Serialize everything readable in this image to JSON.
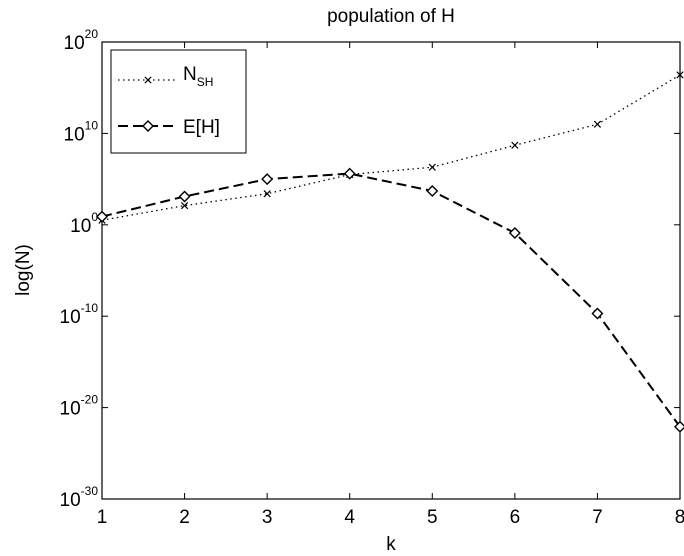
{
  "chart_data": {
    "type": "line",
    "title": "population of H",
    "xlabel": "k",
    "ylabel": "log(N)",
    "yscale": "log",
    "xlim": [
      1,
      8
    ],
    "ylim_exponent": [
      -30,
      20
    ],
    "x_ticks": [
      1,
      2,
      3,
      4,
      5,
      6,
      7,
      8
    ],
    "y_ticks": [
      {
        "base": "10",
        "exp": "-30",
        "value": -30
      },
      {
        "base": "10",
        "exp": "-20",
        "value": -20
      },
      {
        "base": "10",
        "exp": "-10",
        "value": -10
      },
      {
        "base": "10",
        "exp": "0",
        "value": 0
      },
      {
        "base": "10",
        "exp": "10",
        "value": 10
      },
      {
        "base": "10",
        "exp": "20",
        "value": 20
      }
    ],
    "x": [
      1,
      2,
      3,
      4,
      5,
      6,
      7,
      8
    ],
    "series": [
      {
        "name": "N",
        "name_sub": "SH",
        "marker": "x",
        "line_style": "dotted",
        "log10_values": [
          0.5,
          2.1,
          3.4,
          5.5,
          6.3,
          8.7,
          11.0,
          16.4
        ]
      },
      {
        "name": "E[H]",
        "marker": "diamond",
        "line_style": "dashed",
        "log10_values": [
          0.9,
          3.1,
          5.0,
          5.6,
          3.7,
          -0.9,
          -9.7,
          -22.1
        ]
      }
    ],
    "legend_position": "top-left",
    "grid": false
  }
}
